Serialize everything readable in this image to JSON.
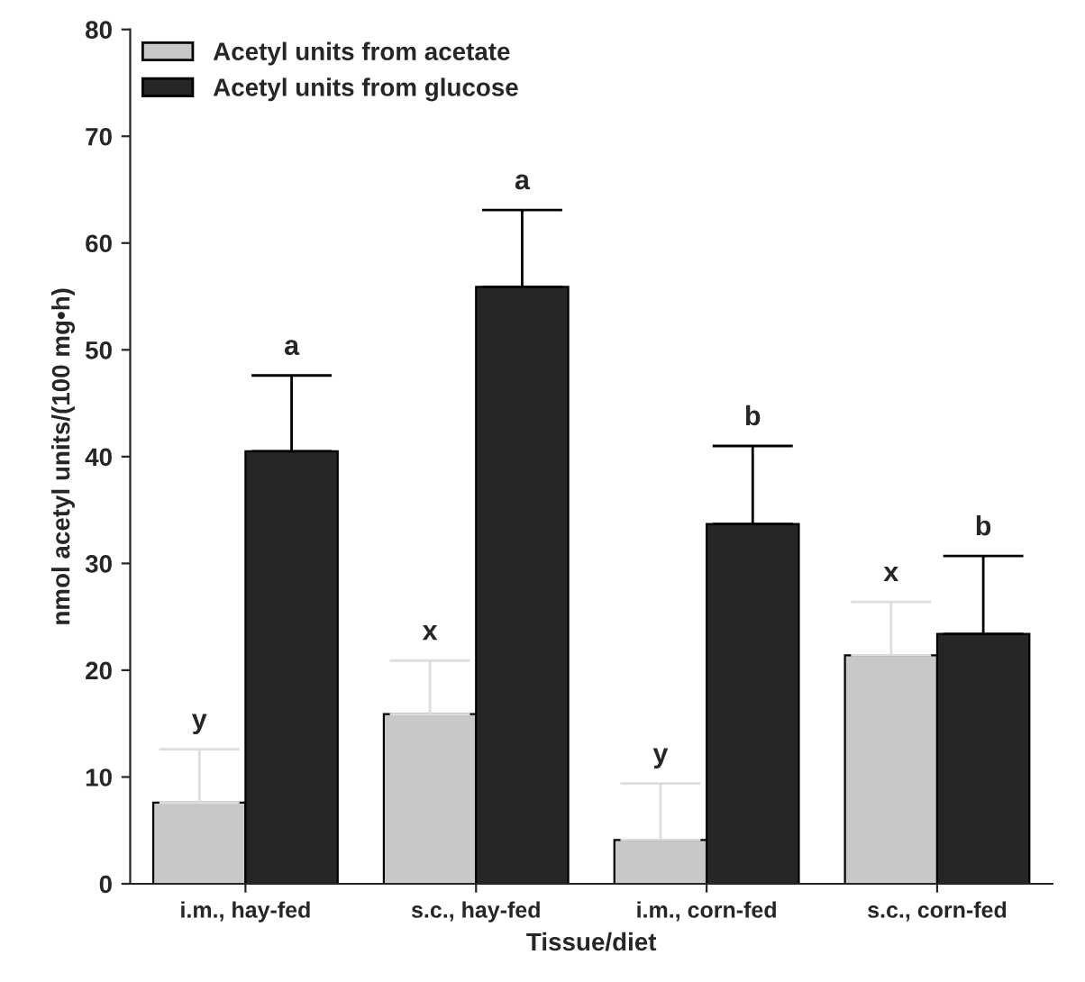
{
  "chart_data": {
    "type": "bar",
    "xlabel": "Tissue/diet",
    "ylabel": "nmol acetyl units/(100 mg•h)",
    "categories": [
      "i.m., hay-fed",
      "s.c., hay-fed",
      "i.m., corn-fed",
      "s.c., corn-fed"
    ],
    "series": [
      {
        "name": "Acetyl units from acetate",
        "color": "#c8c8c8",
        "values": [
          7.6,
          15.9,
          4.1,
          21.4
        ],
        "errors": [
          5.0,
          5.0,
          5.3,
          5.0
        ]
      },
      {
        "name": "Acetyl units from glucose",
        "color": "#262626",
        "values": [
          40.5,
          55.9,
          33.7,
          23.4
        ],
        "errors": [
          7.1,
          7.2,
          7.3,
          7.3
        ]
      }
    ],
    "annotations": [
      "y",
      "a",
      "x",
      "a",
      "y",
      "b",
      "x",
      "b"
    ],
    "ylim": [
      0,
      80
    ],
    "yticks": [
      0,
      10,
      20,
      30,
      40,
      50,
      60,
      70,
      80
    ],
    "grid": false,
    "legend": "top left"
  }
}
